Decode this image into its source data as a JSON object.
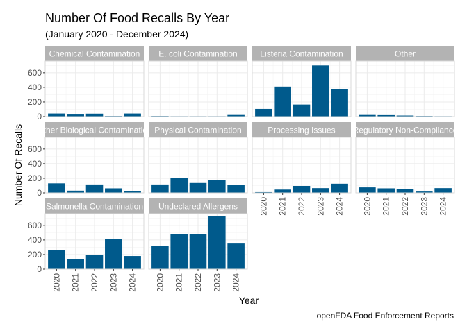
{
  "chart_data": {
    "type": "bar",
    "title": "Number Of Food Recalls By Year",
    "subtitle": "(January 2020 - December 2024)",
    "xlabel": "Year",
    "ylabel": "Number Of Recalls",
    "caption": "openFDA Food Enforcement Reports",
    "categories": [
      "2020",
      "2021",
      "2022",
      "2023",
      "2024"
    ],
    "ylim": [
      0,
      760
    ],
    "yticks": [
      0,
      200,
      400,
      600
    ],
    "bar_color": "#005A8C",
    "strip_color": "#B3B3B3",
    "grid": true,
    "facets": [
      {
        "name": "Chemical Contamination",
        "values": [
          42,
          28,
          40,
          8,
          42
        ]
      },
      {
        "name": "E. coli Contamination",
        "values": [
          8,
          6,
          6,
          6,
          22
        ]
      },
      {
        "name": "Listeria Contamination",
        "values": [
          105,
          410,
          165,
          700,
          375
        ]
      },
      {
        "name": "Other",
        "values": [
          22,
          20,
          14,
          8,
          6
        ]
      },
      {
        "name": "Other Biological Contamination",
        "values": [
          130,
          30,
          115,
          62,
          22
        ]
      },
      {
        "name": "Physical Contamination",
        "values": [
          115,
          205,
          135,
          175,
          105
        ]
      },
      {
        "name": "Processing Issues",
        "values": [
          10,
          45,
          95,
          65,
          125
        ]
      },
      {
        "name": "Regulatory Non-Compliance",
        "values": [
          75,
          62,
          55,
          18,
          65
        ]
      },
      {
        "name": "Salmonella Contamination",
        "values": [
          265,
          140,
          195,
          415,
          180
        ]
      },
      {
        "name": "Undeclared Allergens",
        "values": [
          320,
          475,
          475,
          725,
          360
        ]
      }
    ]
  }
}
